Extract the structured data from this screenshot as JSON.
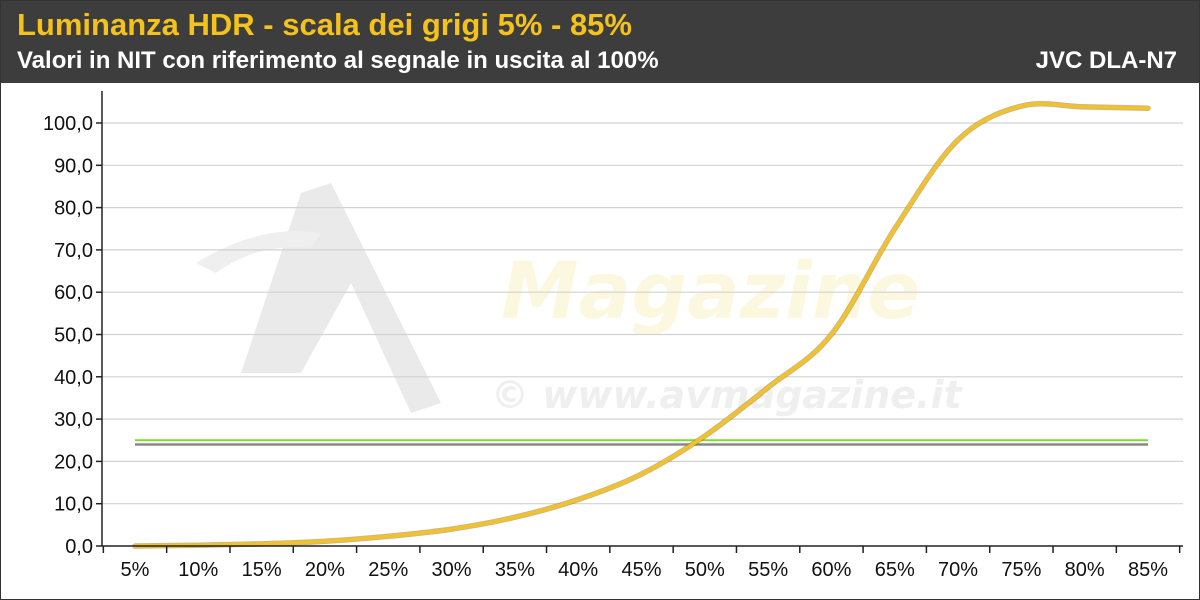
{
  "header": {
    "title": "Luminanza HDR - scala dei grigi 5% - 85%",
    "subtitle": "Valori in NIT con riferimento al segnale in uscita al 100%",
    "device": "JVC DLA-N7"
  },
  "watermark": {
    "brand": "Magazine",
    "url": "© www.avmagazine.it"
  },
  "colors": {
    "header_bg": "#3d3d3d",
    "title": "#f5c21b",
    "curve": "#f2c12e",
    "reference_green": "#7ddc2a",
    "reference_gray": "#888888",
    "grid": "#d2d2d2"
  },
  "chart_data": {
    "type": "line",
    "title": "Luminanza HDR - scala dei grigi 5% - 85%",
    "subtitle": "Valori in NIT con riferimento al segnale in uscita al 100%",
    "xlabel": "",
    "ylabel": "",
    "categories": [
      "5%",
      "10%",
      "15%",
      "20%",
      "25%",
      "30%",
      "35%",
      "40%",
      "45%",
      "50%",
      "55%",
      "60%",
      "65%",
      "70%",
      "75%",
      "80%",
      "85%"
    ],
    "y_ticks": [
      "0,0",
      "10,0",
      "20,0",
      "30,0",
      "40,0",
      "50,0",
      "60,0",
      "70,0",
      "80,0",
      "90,0",
      "100,0"
    ],
    "ylim": [
      0,
      100
    ],
    "grid": true,
    "legend": "none",
    "series": [
      {
        "values": [
          0.0,
          0.2,
          0.5,
          1.1,
          2.3,
          4.0,
          6.8,
          11.0,
          17.0,
          26.0,
          37.5,
          50.0,
          75.0,
          96.0,
          104.0,
          103.8,
          103.5
        ]
      },
      {
        "values": [
          25.0,
          25.0,
          25.0,
          25.0,
          25.0,
          25.0,
          25.0,
          25.0,
          25.0,
          25.0,
          25.0,
          25.0,
          25.0,
          25.0,
          25.0,
          25.0,
          25.0
        ]
      },
      {
        "values": [
          24.0,
          24.0,
          24.0,
          24.0,
          24.0,
          24.0,
          24.0,
          24.0,
          24.0,
          24.0,
          24.0,
          24.0,
          24.0,
          24.0,
          24.0,
          24.0,
          24.0
        ]
      }
    ]
  }
}
